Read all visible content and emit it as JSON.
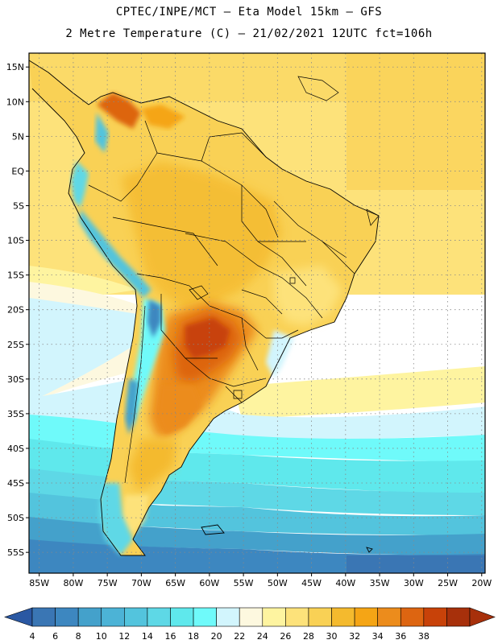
{
  "header": {
    "line1": "CPTEC/INPE/MCT  –   Eta Model 15km  – GFS",
    "line2": "2 Metre Temperature (C) – 21/02/2021 12UTC fct=106h"
  },
  "map": {
    "lat_labels": [
      "15N",
      "10N",
      "5N",
      "EQ",
      "5S",
      "10S",
      "15S",
      "20S",
      "25S",
      "30S",
      "35S",
      "40S",
      "45S",
      "50S",
      "55S"
    ],
    "lon_labels": [
      "85W",
      "80W",
      "75W",
      "70W",
      "65W",
      "60W",
      "55W",
      "50W",
      "45W",
      "40W",
      "35W",
      "30W",
      "25W",
      "20W"
    ],
    "lat_values": [
      15,
      10,
      5,
      0,
      -5,
      -10,
      -15,
      -20,
      -25,
      -30,
      -35,
      -40,
      -45,
      -50,
      -55
    ],
    "lon_values": [
      -85,
      -80,
      -75,
      -70,
      -65,
      -60,
      -55,
      -50,
      -45,
      -40,
      -35,
      -30,
      -25,
      -20
    ],
    "region_extent": {
      "lon": [
        -86.5,
        -19.5
      ],
      "lat": [
        -58,
        17
      ]
    }
  },
  "colorbar": {
    "labels": [
      "4",
      "6",
      "8",
      "10",
      "12",
      "14",
      "16",
      "18",
      "20",
      "22",
      "24",
      "26",
      "28",
      "30",
      "32",
      "34",
      "36",
      "38"
    ],
    "colors": [
      "#3a76b4",
      "#3d87c0",
      "#44a1cb",
      "#4cb3d6",
      "#53c4dd",
      "#5ed8e6",
      "#5fe8ec",
      "#6ffafa",
      "#d2f5fd",
      "#fdf8df",
      "#fef4a0",
      "#fde27a",
      "#f9d155",
      "#f4ba2e",
      "#f5a515",
      "#ec8c1c",
      "#dd6511",
      "#c84209",
      "#a7300b"
    ],
    "underflow_color": "#2a58a3",
    "overflow_color": "#a7300b"
  }
}
